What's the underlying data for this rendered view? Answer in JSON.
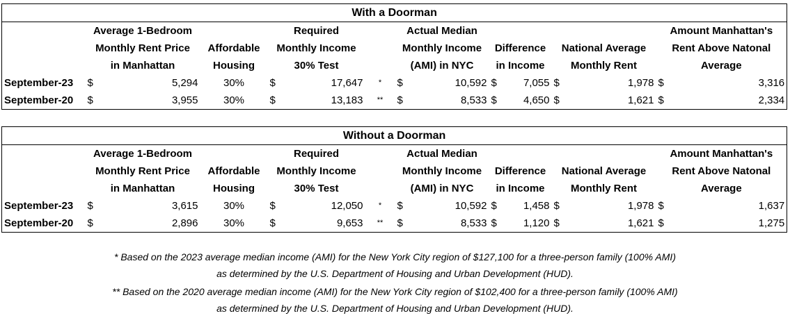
{
  "tables": [
    {
      "title": "With a Doorman",
      "headers": [
        [
          "Average 1-Bedroom",
          "Monthly Rent Price",
          "in Manhattan"
        ],
        [
          "Affordable",
          "Housing"
        ],
        [
          "Required",
          "Monthly Income",
          "30% Test"
        ],
        [
          "Actual Median",
          "Monthly Income",
          "(AMI) in NYC"
        ],
        [
          "Difference",
          "in Income"
        ],
        [
          "National Average",
          "Monthly Rent"
        ],
        [
          "Amount Manhattan's",
          "Rent Above Natonal",
          "Average"
        ]
      ],
      "rows": [
        [
          "September-23",
          "$",
          "5,294",
          "30%",
          "$",
          "17,647",
          "*",
          "$",
          "10,592",
          "$",
          "7,055",
          "$",
          "1,978",
          "$",
          "3,316"
        ],
        [
          "September-20",
          "$",
          "3,955",
          "30%",
          "$",
          "13,183",
          "**",
          "$",
          "8,533",
          "$",
          "4,650",
          "$",
          "1,621",
          "$",
          "2,334"
        ]
      ]
    },
    {
      "title": "Without a Doorman",
      "headers": [
        [
          "Average 1-Bedroom",
          "Monthly Rent Price",
          "in Manhattan"
        ],
        [
          "Affordable",
          "Housing"
        ],
        [
          "Required",
          "Monthly Income",
          "30% Test"
        ],
        [
          "Actual Median",
          "Monthly Income",
          "(AMI) in NYC"
        ],
        [
          "Difference",
          "in Income"
        ],
        [
          "National Average",
          "Monthly Rent"
        ],
        [
          "Amount Manhattan's",
          "Rent Above Natonal",
          "Average"
        ]
      ],
      "rows": [
        [
          "September-23",
          "$",
          "3,615",
          "30%",
          "$",
          "12,050",
          "*",
          "$",
          "10,592",
          "$",
          "1,458",
          "$",
          "1,978",
          "$",
          "1,637"
        ],
        [
          "September-20",
          "$",
          "2,896",
          "30%",
          "$",
          "9,653",
          "**",
          "$",
          "8,533",
          "$",
          "1,120",
          "$",
          "1,621",
          "$",
          "1,275"
        ]
      ]
    }
  ],
  "footnotes": [
    [
      "* Based on the 2023 average median income (AMI) for the New York City region of $127,100 for a three-person family (100% AMI)",
      "as determined by the U.S. Department of Housing and Urban Development (HUD)."
    ],
    [
      "** Based on the 2020 average median income (AMI) for the New York City region of $102,400 for a three-person family (100% AMI)",
      "as determined by the U.S. Department of Housing and Urban Development (HUD)."
    ]
  ]
}
